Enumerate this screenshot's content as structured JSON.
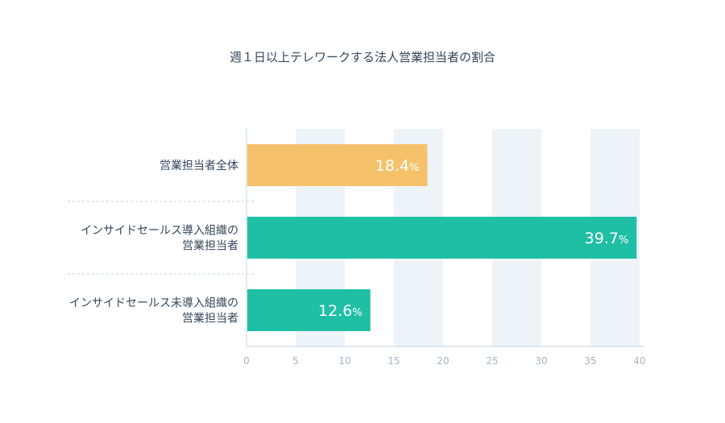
{
  "chart_data": {
    "type": "bar",
    "orientation": "horizontal",
    "title": "週１日以上テレワークする法人営業担当者の割合",
    "categories": [
      [
        "営業担当者全体"
      ],
      [
        "インサイドセールス導入組織の",
        "営業担当者"
      ],
      [
        "インサイドセールス未導入組織の",
        "営業担当者"
      ]
    ],
    "values": [
      18.4,
      39.7,
      12.6
    ],
    "value_labels": [
      "18.4",
      "39.7",
      "12.6"
    ],
    "value_suffix": "%",
    "bar_colors": [
      "#f5c26b",
      "#1fbfa5",
      "#1fbfa5"
    ],
    "xlim": [
      0,
      40
    ],
    "xticks": [
      0,
      5,
      10,
      15,
      20,
      25,
      30,
      35,
      40
    ],
    "xlabel": "",
    "ylabel": "",
    "grid": "alternating-bands",
    "band_color": "#eef3f8",
    "axis_color": "#c5d3e0",
    "tick_color": "#9fb6ca",
    "text_color": "#33475b"
  }
}
